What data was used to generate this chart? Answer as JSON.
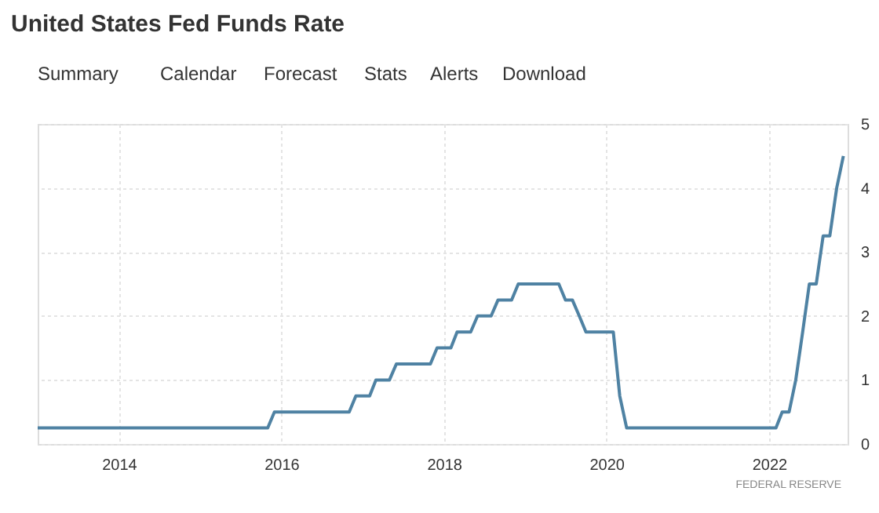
{
  "chart_data": {
    "type": "line",
    "title": "United States Fed Funds Rate",
    "annotations": [
      "Summary",
      "Calendar",
      "Forecast",
      "Stats",
      "Alerts",
      "Download",
      "FEDERAL RESERVE"
    ],
    "x": [
      "2013-01",
      "2015-11",
      "2015-12",
      "2016-11",
      "2016-12",
      "2017-02",
      "2017-03",
      "2017-05",
      "2017-06",
      "2017-11",
      "2017-12",
      "2018-02",
      "2018-03",
      "2018-05",
      "2018-06",
      "2018-08",
      "2018-09",
      "2018-11",
      "2018-12",
      "2019-06",
      "2019-07",
      "2019-08",
      "2019-09",
      "2019-10",
      "2020-02",
      "2020-03",
      "2020-04",
      "2022-02",
      "2022-03",
      "2022-04",
      "2022-05",
      "2022-06",
      "2022-07",
      "2022-08",
      "2022-09",
      "2022-10",
      "2022-11",
      "2022-12"
    ],
    "series": [
      {
        "color": "#4f82a3",
        "values": [
          0.25,
          0.25,
          0.5,
          0.5,
          0.75,
          0.75,
          1.0,
          1.0,
          1.25,
          1.25,
          1.5,
          1.5,
          1.75,
          1.75,
          2.0,
          2.0,
          2.25,
          2.25,
          2.5,
          2.5,
          2.25,
          2.25,
          2.0,
          1.75,
          1.75,
          0.75,
          0.25,
          0.25,
          0.5,
          0.5,
          1.0,
          1.75,
          2.5,
          2.5,
          3.25,
          3.25,
          4.0,
          4.5
        ]
      }
    ],
    "xlim": [
      "2013-01-01",
      "2022-12-20"
    ],
    "xticks": [
      "2014",
      "2016",
      "2018",
      "2020",
      "2022"
    ],
    "ylim": [
      0,
      5
    ],
    "yticks": [
      0,
      1,
      2,
      3,
      4,
      5
    ],
    "grid": true,
    "marker": "none",
    "line_style": "solid"
  }
}
